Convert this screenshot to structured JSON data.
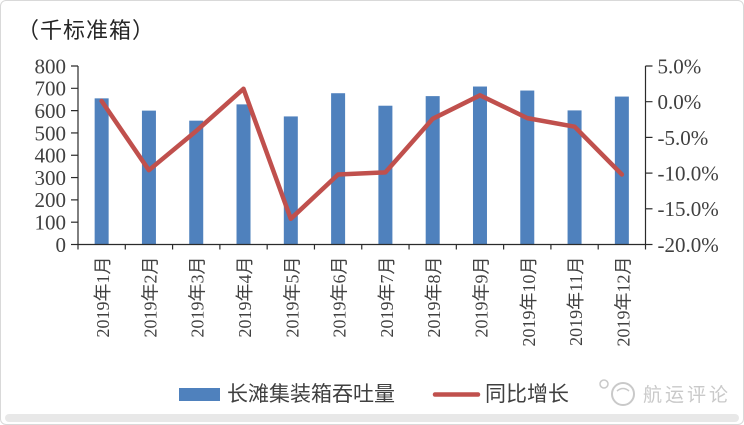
{
  "title": "（千标准箱）",
  "chart_data": {
    "type": "bar+line combo",
    "categories": [
      "2019年1月",
      "2019年2月",
      "2019年3月",
      "2019年4月",
      "2019年5月",
      "2019年6月",
      "2019年7月",
      "2019年8月",
      "2019年9月",
      "2019年10月",
      "2019年11月",
      "2019年12月"
    ],
    "series": [
      {
        "name": "长滩集装箱吞吐量",
        "type": "bar",
        "axis": "left",
        "color": "#4F81BD",
        "values": [
          655,
          600,
          555,
          628,
          574,
          678,
          622,
          665,
          708,
          690,
          601,
          663
        ]
      },
      {
        "name": "同比增长",
        "type": "line",
        "axis": "right",
        "color": "#C0504D",
        "values_pct": [
          0.1,
          -9.6,
          -4.1,
          1.8,
          -16.4,
          -10.2,
          -9.9,
          -2.4,
          0.9,
          -2.3,
          -3.5,
          -10.2
        ]
      }
    ],
    "left_axis": {
      "title": "（千标准箱）",
      "min": 0,
      "max": 800,
      "step": 100,
      "tick_labels": [
        "800",
        "700",
        "600",
        "500",
        "400",
        "300",
        "200",
        "100",
        "0"
      ]
    },
    "right_axis": {
      "min": -20,
      "max": 5,
      "step": 5,
      "tick_labels": [
        "5.0%",
        "0.0%",
        "-5.0%",
        "-10.0%",
        "-15.0%",
        "-20.0%"
      ]
    },
    "grid": false,
    "legend_position": "bottom"
  },
  "legend": {
    "bar_label": "长滩集装箱吞吐量",
    "line_label": "同比增长"
  },
  "watermark": {
    "text": "航运评论"
  },
  "colors": {
    "bar": "#4F81BD",
    "line": "#C0504D",
    "axis": "#2b2b2b",
    "text": "#404040",
    "watermark": "#c9c9c9"
  }
}
